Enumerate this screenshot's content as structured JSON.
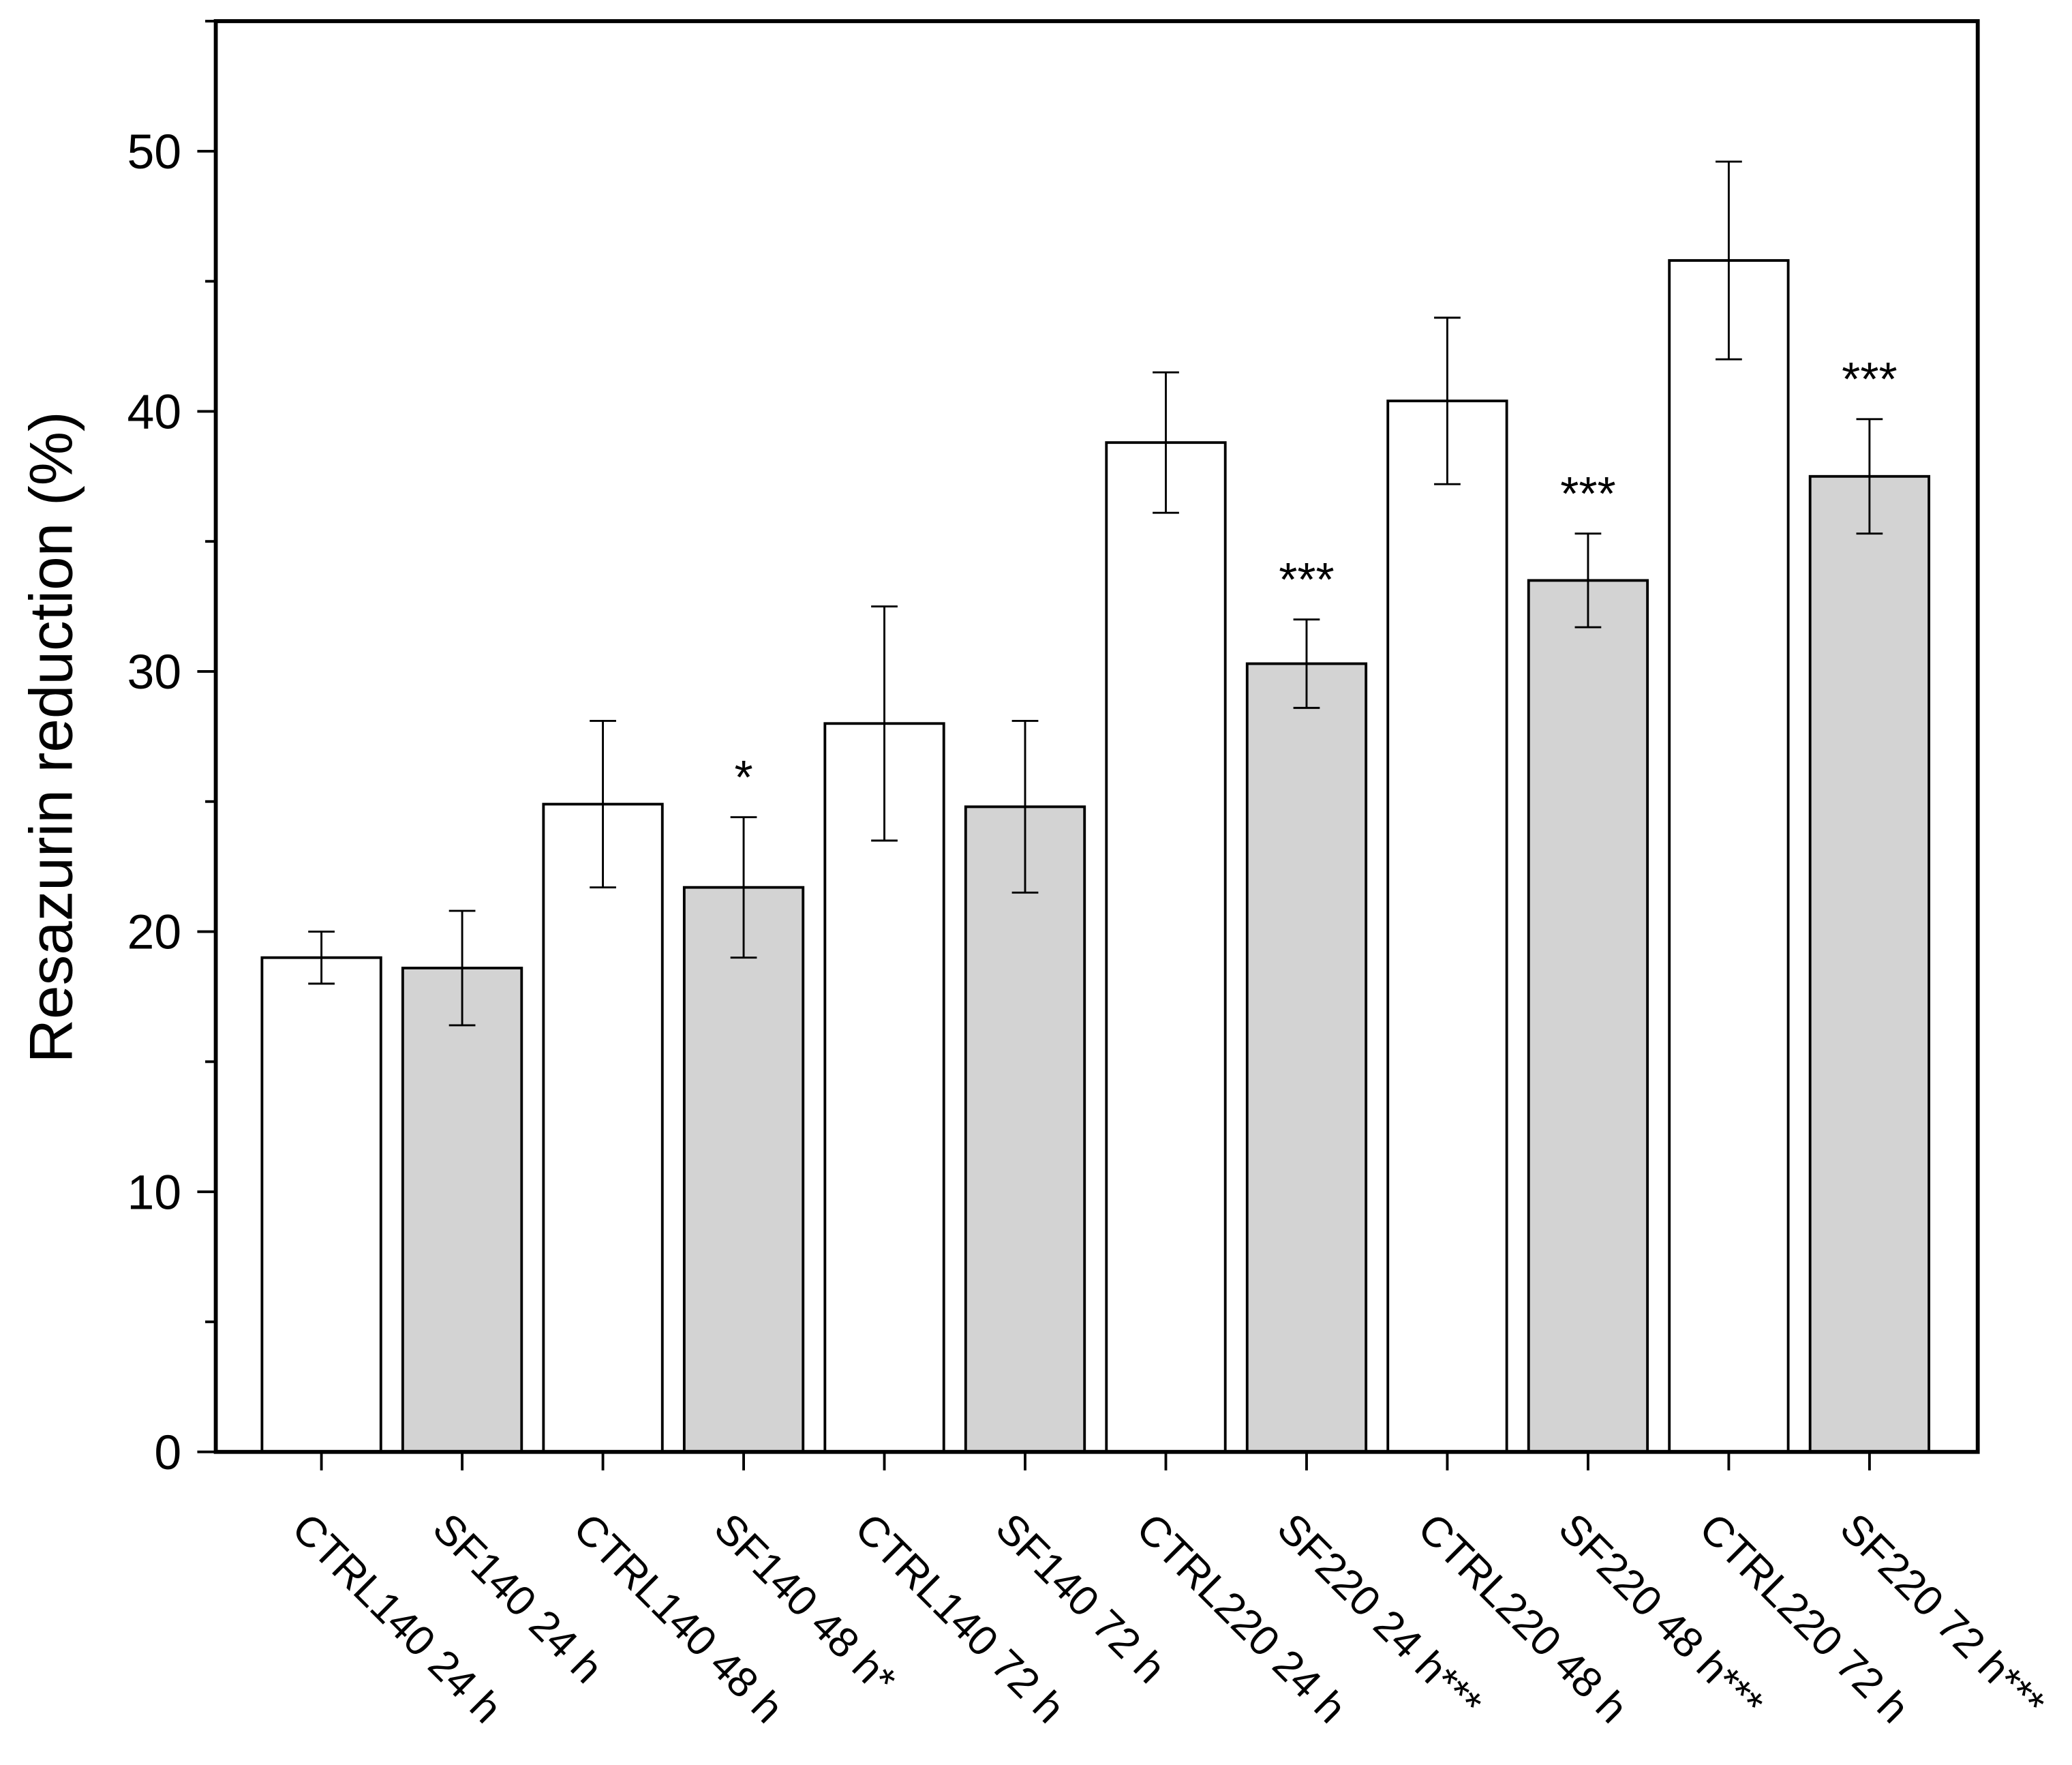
{
  "chart_data": {
    "type": "bar",
    "y_label": "Resazurin reduction (%)",
    "categories": [
      "CTRL140 24 h",
      "SF140 24 h",
      "CTRL140 48 h",
      "SF140 48 h*",
      "CTRL140 72 h",
      "SF140 72 h",
      "CTRL220 24 h",
      "SF220 24 h***",
      "CTRL220 48 h",
      "SF220 48 h***",
      "CTRL220 72 h",
      "SF220 72 h***"
    ],
    "values": [
      19.0,
      18.6,
      24.9,
      21.7,
      28.0,
      24.8,
      38.8,
      30.3,
      40.4,
      33.5,
      45.8,
      37.5
    ],
    "errors": [
      1.0,
      2.2,
      3.2,
      2.7,
      4.5,
      3.3,
      2.7,
      1.7,
      3.2,
      1.8,
      3.8,
      2.2
    ],
    "colors": [
      "#ffffff",
      "#d3d3d3",
      "#ffffff",
      "#d3d3d3",
      "#ffffff",
      "#d3d3d3",
      "#ffffff",
      "#d3d3d3",
      "#ffffff",
      "#d3d3d3",
      "#ffffff",
      "#d3d3d3"
    ],
    "annotations": [
      null,
      null,
      null,
      "*",
      null,
      null,
      null,
      "***",
      null,
      "***",
      null,
      "***"
    ],
    "ylim": [
      0,
      55
    ],
    "yticks": [
      0,
      10,
      20,
      30,
      40,
      50
    ],
    "yminor_ticks": [
      5,
      15,
      25,
      35,
      45,
      55
    ]
  }
}
